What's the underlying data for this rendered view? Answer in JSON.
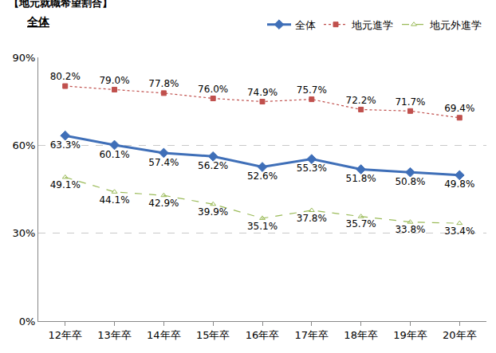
{
  "chart_data": {
    "type": "line",
    "title": "【地元就職希望割合】",
    "subtitle": "全体",
    "categories": [
      "12年卒",
      "13年卒",
      "14年卒",
      "15年卒",
      "16年卒",
      "17年卒",
      "18年卒",
      "19年卒",
      "20年卒"
    ],
    "series": [
      {
        "name": "全体",
        "color": "#3f6fb8",
        "marker": "diamond",
        "line_style": "solid",
        "values": [
          63.3,
          60.1,
          57.4,
          56.2,
          52.6,
          55.3,
          51.8,
          50.8,
          49.8
        ],
        "value_labels": [
          "63.3%",
          "60.1%",
          "57.4%",
          "56.2%",
          "52.6%",
          "55.3%",
          "51.8%",
          "50.8%",
          "49.8%"
        ]
      },
      {
        "name": "地元進学",
        "color": "#c0504d",
        "marker": "square",
        "line_style": "dot",
        "values": [
          80.2,
          79.0,
          77.8,
          76.0,
          74.9,
          75.7,
          72.2,
          71.7,
          69.4
        ],
        "value_labels": [
          "80.2%",
          "79.0%",
          "77.8%",
          "76.0%",
          "74.9%",
          "75.7%",
          "72.2%",
          "71.7%",
          "69.4%"
        ]
      },
      {
        "name": "地元外進学",
        "color": "#9bbb59",
        "marker": "triangle-open",
        "line_style": "dash",
        "values": [
          49.1,
          44.1,
          42.9,
          39.9,
          35.1,
          37.8,
          35.7,
          33.8,
          33.4
        ],
        "value_labels": [
          "49.1%",
          "44.1%",
          "42.9%",
          "39.9%",
          "35.1%",
          "37.8%",
          "35.7%",
          "33.8%",
          "33.4%"
        ]
      }
    ],
    "ylim": [
      0,
      90
    ],
    "yticks": [
      {
        "value": 0,
        "label": "0%"
      },
      {
        "value": 30,
        "label": "30%"
      },
      {
        "value": 60,
        "label": "60%"
      },
      {
        "value": 90,
        "label": "90%"
      }
    ],
    "grid": true,
    "legend": "top right",
    "data_labels": true
  }
}
